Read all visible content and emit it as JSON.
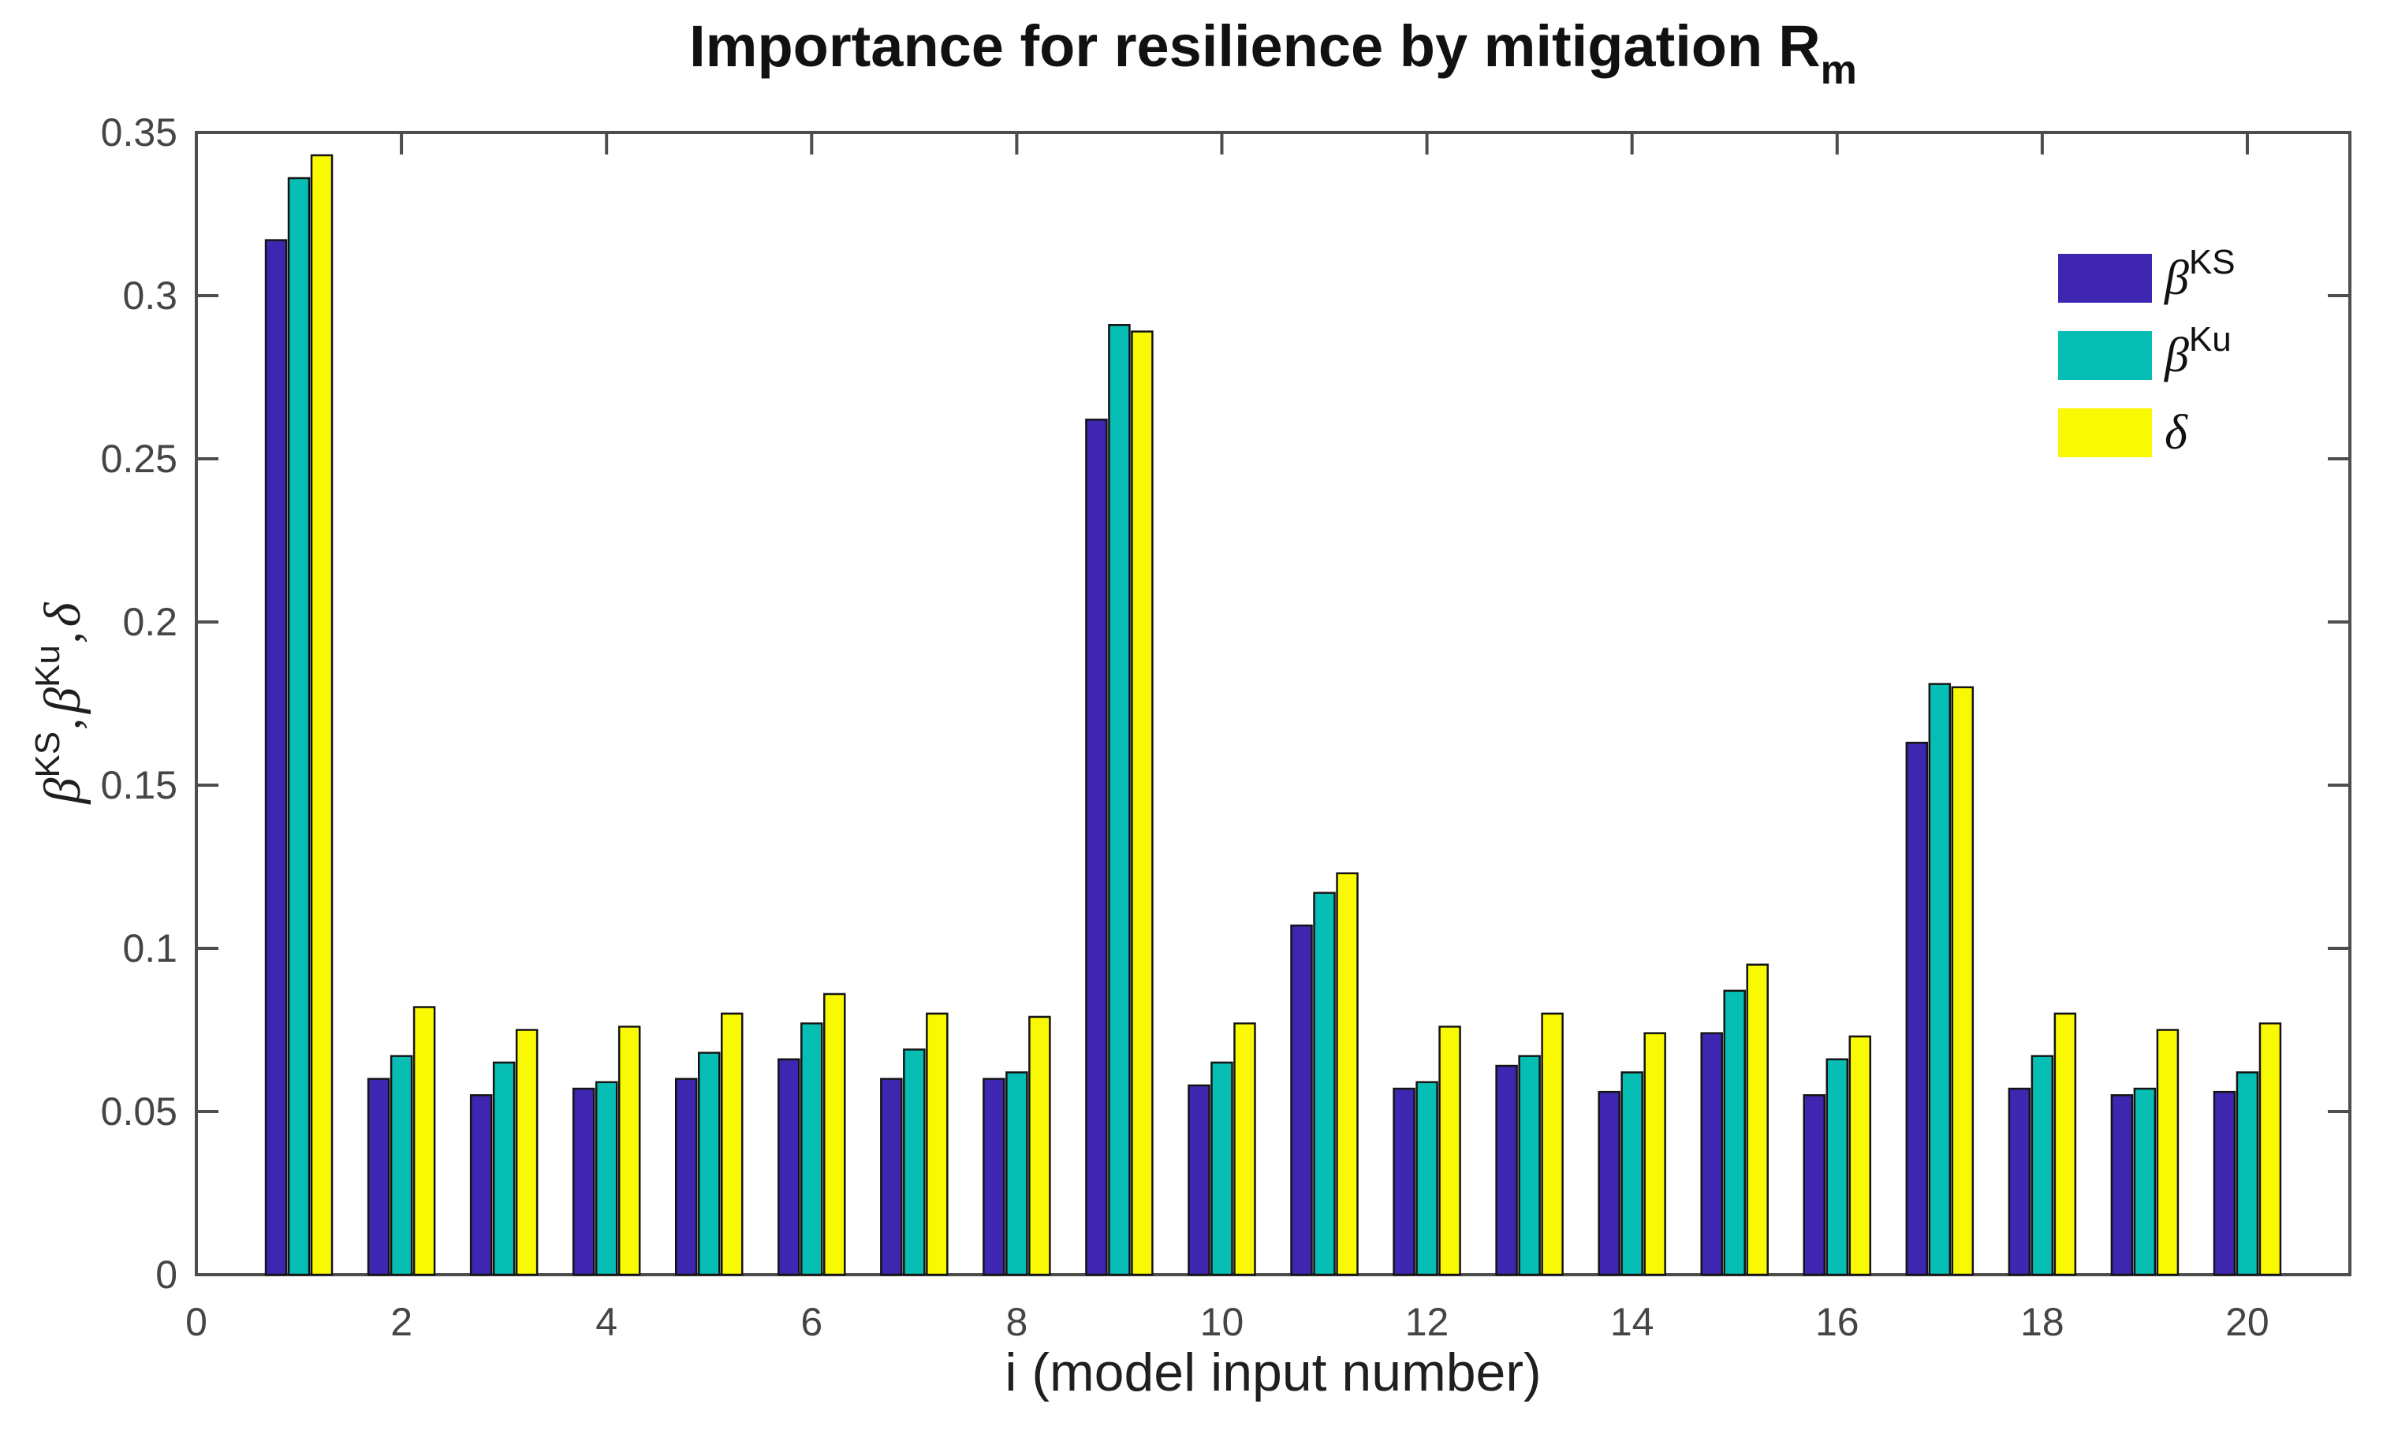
{
  "title": {
    "prefix": "Importance for resilience by mitigation",
    "r": "R",
    "sub": "m"
  },
  "x_axis_label": "i (model input number)",
  "y_axis_label": {
    "beta1": "β",
    "sup1": "KS",
    "comma1": ",",
    "beta2": "β",
    "sup2": "Ku",
    "comma2": ",",
    "delta": "δ"
  },
  "legend": {
    "position": "upper-right-inside-no-box",
    "entries": [
      {
        "id": "beta-ks",
        "base": "β",
        "sup": "KS",
        "color": "#3E26B0"
      },
      {
        "id": "beta-ku",
        "base": "β",
        "sup": "Ku",
        "color": "#07BEB5"
      },
      {
        "id": "delta",
        "base": "δ",
        "sup": "",
        "color": "#F9F903"
      }
    ]
  },
  "axis_style": {
    "line_color": "#4D4D4D",
    "tick_label_color": "#454545",
    "bar_edge_color": "#141414",
    "background": "#FFFFFF"
  },
  "chart_data": {
    "type": "bar",
    "title": "Importance for resilience by mitigation R_m",
    "xlabel": "i (model input number)",
    "ylabel": "beta^KS, beta^Ku, delta",
    "x": [
      1,
      2,
      3,
      4,
      5,
      6,
      7,
      8,
      9,
      10,
      11,
      12,
      13,
      14,
      15,
      16,
      17,
      18,
      19,
      20
    ],
    "series": [
      {
        "id": "beta-ks",
        "name": "beta^KS",
        "color": "#3E26B0",
        "values": [
          0.317,
          0.06,
          0.055,
          0.057,
          0.06,
          0.066,
          0.06,
          0.06,
          0.262,
          0.058,
          0.107,
          0.057,
          0.064,
          0.056,
          0.074,
          0.055,
          0.163,
          0.057,
          0.055,
          0.056
        ]
      },
      {
        "id": "beta-ku",
        "name": "beta^Ku",
        "color": "#07BEB5",
        "values": [
          0.336,
          0.067,
          0.065,
          0.059,
          0.068,
          0.077,
          0.069,
          0.062,
          0.291,
          0.065,
          0.117,
          0.059,
          0.067,
          0.062,
          0.087,
          0.066,
          0.181,
          0.067,
          0.057,
          0.062
        ]
      },
      {
        "id": "delta",
        "name": "delta",
        "color": "#F9F903",
        "values": [
          0.343,
          0.082,
          0.075,
          0.076,
          0.08,
          0.086,
          0.08,
          0.079,
          0.289,
          0.077,
          0.123,
          0.076,
          0.08,
          0.074,
          0.095,
          0.073,
          0.18,
          0.08,
          0.075,
          0.077
        ]
      }
    ],
    "ylim": [
      0,
      0.35
    ],
    "xlim": [
      0,
      21
    ],
    "yticks": [
      0,
      0.05,
      0.1,
      0.15,
      0.2,
      0.25,
      0.3,
      0.35
    ],
    "ytick_labels": [
      "0",
      "0.05",
      "0.1",
      "0.15",
      "0.2",
      "0.25",
      "0.3",
      "0.35"
    ],
    "xticks": [
      0,
      2,
      4,
      6,
      8,
      10,
      12,
      14,
      16,
      18,
      20
    ],
    "xtick_labels": [
      "0",
      "2",
      "4",
      "6",
      "8",
      "10",
      "12",
      "14",
      "16",
      "18",
      "20"
    ],
    "grid": false,
    "legend_position": "upper right"
  }
}
